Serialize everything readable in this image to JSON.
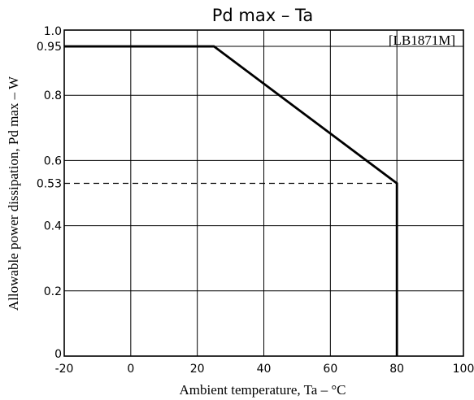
{
  "chart_data": {
    "type": "line",
    "title": "Pd max  –  Ta",
    "annotation": "[LB1871M]",
    "xlabel": "Ambient temperature, Ta – °C",
    "ylabel": "Allowable power dissipation, Pd max – W",
    "xlim": [
      -20,
      100
    ],
    "ylim": [
      0,
      1.0
    ],
    "x_ticks": [
      -20,
      0,
      20,
      40,
      60,
      80,
      100
    ],
    "x_tick_labels": [
      "-20",
      "0",
      "20",
      "40",
      "60",
      "80",
      "100"
    ],
    "y_ticks": [
      0,
      0.2,
      0.4,
      0.53,
      0.6,
      0.8,
      0.95,
      1.0
    ],
    "y_tick_labels": [
      "0",
      "0.2",
      "0.4",
      "0.53",
      "0.6",
      "0.8",
      "0.95",
      "1.0"
    ],
    "grid": true,
    "series": [
      {
        "style": "solid",
        "x": [
          -20,
          25,
          80,
          80
        ],
        "y": [
          0.95,
          0.95,
          0.53,
          0
        ]
      }
    ],
    "reference_lines": [
      {
        "style": "dashed",
        "x": [
          -20,
          80
        ],
        "y": [
          0.53,
          0.53
        ]
      }
    ]
  }
}
